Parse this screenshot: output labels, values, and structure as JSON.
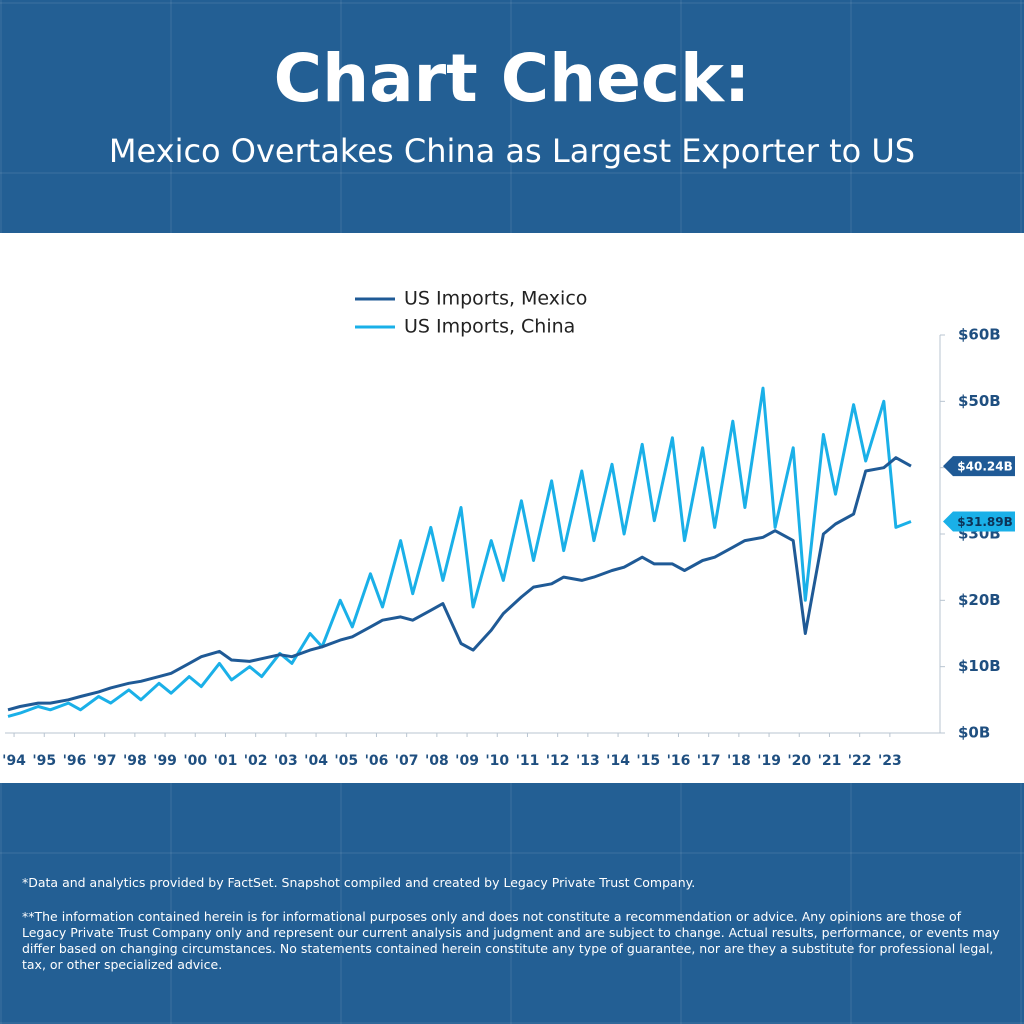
{
  "chart_data": {
    "type": "line",
    "title": "Chart Check:",
    "subtitle": "Mexico Overtakes China as Largest Exporter to US",
    "x": [
      1993.8,
      1994.2,
      1994.8,
      1995.2,
      1995.8,
      1996.2,
      1996.8,
      1997.2,
      1997.8,
      1998.2,
      1998.8,
      1999.2,
      1999.8,
      2000.2,
      2000.8,
      2001.2,
      2001.8,
      2002.2,
      2002.8,
      2003.2,
      2003.8,
      2004.2,
      2004.8,
      2005.2,
      2005.8,
      2006.2,
      2006.8,
      2007.2,
      2007.8,
      2008.2,
      2008.8,
      2009.2,
      2009.8,
      2010.2,
      2010.8,
      2011.2,
      2011.8,
      2012.2,
      2012.8,
      2013.2,
      2013.8,
      2014.2,
      2014.8,
      2015.2,
      2015.8,
      2016.2,
      2016.8,
      2017.2,
      2017.8,
      2018.2,
      2018.8,
      2019.2,
      2019.8,
      2020.2,
      2020.8,
      2021.2,
      2021.8,
      2022.2,
      2022.8,
      2023.2,
      2023.7
    ],
    "series": [
      {
        "name": "US Imports, Mexico",
        "color": "#1f5a96",
        "end_label": "$40.24B",
        "values": [
          3.5,
          4.0,
          4.5,
          4.5,
          5.0,
          5.5,
          6.2,
          6.8,
          7.5,
          7.8,
          8.5,
          9.0,
          10.5,
          11.5,
          12.3,
          11.0,
          10.8,
          11.2,
          11.8,
          11.5,
          12.5,
          13.0,
          14.0,
          14.5,
          16.0,
          17.0,
          17.5,
          17.0,
          18.5,
          19.5,
          13.5,
          12.5,
          15.5,
          18.0,
          20.5,
          22.0,
          22.5,
          23.5,
          23.0,
          23.5,
          24.5,
          25.0,
          26.5,
          25.5,
          25.5,
          24.5,
          26.0,
          26.5,
          28.0,
          29.0,
          29.5,
          30.5,
          29.0,
          15.0,
          30.0,
          31.5,
          33.0,
          39.5,
          40.0,
          41.5,
          40.24
        ]
      },
      {
        "name": "US Imports, China",
        "color": "#1ab0e8",
        "end_label": "$31.89B",
        "values": [
          2.5,
          3.0,
          4.0,
          3.5,
          4.5,
          3.5,
          5.5,
          4.5,
          6.5,
          5.0,
          7.5,
          6.0,
          8.5,
          7.0,
          10.5,
          8.0,
          10.0,
          8.5,
          12.0,
          10.5,
          15.0,
          13.0,
          20.0,
          16.0,
          24.0,
          19.0,
          29.0,
          21.0,
          31.0,
          23.0,
          34.0,
          19.0,
          29.0,
          23.0,
          35.0,
          26.0,
          38.0,
          27.5,
          39.5,
          29.0,
          40.5,
          30.0,
          43.5,
          32.0,
          44.5,
          29.0,
          43.0,
          31.0,
          47.0,
          34.0,
          52.0,
          31.0,
          43.0,
          20.0,
          45.0,
          36.0,
          49.5,
          41.0,
          50.0,
          31.0,
          31.89
        ]
      }
    ],
    "xlim": [
      1993.7,
      2024.66
    ],
    "xticks": [
      {
        "value": 1994,
        "label": "'94"
      },
      {
        "value": 1995,
        "label": "'95"
      },
      {
        "value": 1996,
        "label": "'96"
      },
      {
        "value": 1997,
        "label": "'97"
      },
      {
        "value": 1998,
        "label": "'98"
      },
      {
        "value": 1999,
        "label": "'99"
      },
      {
        "value": 2000,
        "label": "'00"
      },
      {
        "value": 2001,
        "label": "'01"
      },
      {
        "value": 2002,
        "label": "'02"
      },
      {
        "value": 2003,
        "label": "'03"
      },
      {
        "value": 2004,
        "label": "'04"
      },
      {
        "value": 2005,
        "label": "'05"
      },
      {
        "value": 2006,
        "label": "'06"
      },
      {
        "value": 2007,
        "label": "'07"
      },
      {
        "value": 2008,
        "label": "'08"
      },
      {
        "value": 2009,
        "label": "'09"
      },
      {
        "value": 2010,
        "label": "'10"
      },
      {
        "value": 2011,
        "label": "'11"
      },
      {
        "value": 2012,
        "label": "'12"
      },
      {
        "value": 2013,
        "label": "'13"
      },
      {
        "value": 2014,
        "label": "'14"
      },
      {
        "value": 2015,
        "label": "'15"
      },
      {
        "value": 2016,
        "label": "'16"
      },
      {
        "value": 2017,
        "label": "'17"
      },
      {
        "value": 2018,
        "label": "'18"
      },
      {
        "value": 2019,
        "label": "'19"
      },
      {
        "value": 2020,
        "label": "'20"
      },
      {
        "value": 2021,
        "label": "'21"
      },
      {
        "value": 2022,
        "label": "'22"
      },
      {
        "value": 2023,
        "label": "'23"
      }
    ],
    "ylim": [
      0,
      60
    ],
    "yticks": [
      {
        "value": 0,
        "label": "$0B"
      },
      {
        "value": 10,
        "label": "$10B"
      },
      {
        "value": 20,
        "label": "$20B"
      },
      {
        "value": 30,
        "label": "$30B"
      },
      {
        "value": 40,
        "label": "$40B"
      },
      {
        "value": 50,
        "label": "$50B"
      },
      {
        "value": 60,
        "label": "$60B"
      }
    ],
    "y_axis_side": "right",
    "legend": "top-center",
    "footnotes": [
      "*Data and analytics provided by FactSet. Snapshot compiled and created by Legacy Private Trust Company.",
      "**The information contained herein is for informational purposes only and does not constitute a recommendation or advice. Any opinions are those of Legacy Private Trust Company only and represent our current analysis and judgment and are subject to change. Actual results, performance, or events may differ based on changing circumstances. No statements contained herein constitute any type of guarantee, nor are they a substitute for professional legal, tax, or other specialized advice."
    ]
  }
}
